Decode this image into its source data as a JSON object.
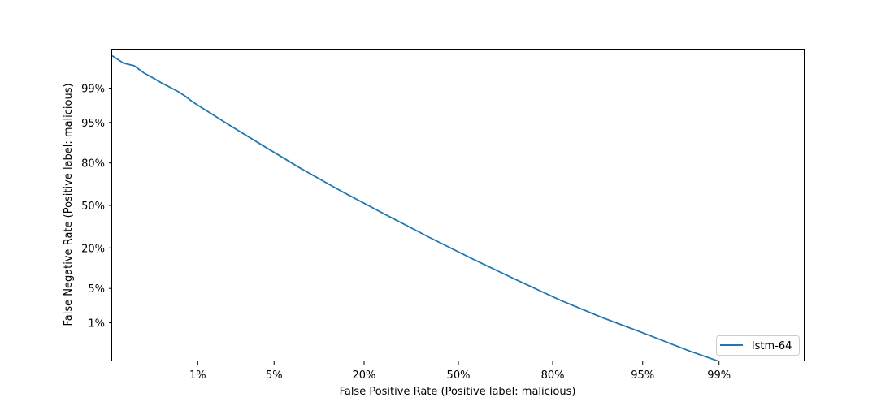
{
  "chart_data": {
    "type": "line",
    "title": "",
    "xlabel": "False Positive Rate (Positive label: malicious)",
    "ylabel": "False Negative Rate (Positive label: malicious)",
    "scale": "normal-deviate (probit) on both axes",
    "x_ticks": [
      {
        "value": 0.01,
        "label": "1%"
      },
      {
        "value": 0.05,
        "label": "5%"
      },
      {
        "value": 0.2,
        "label": "20%"
      },
      {
        "value": 0.5,
        "label": "50%"
      },
      {
        "value": 0.8,
        "label": "80%"
      },
      {
        "value": 0.95,
        "label": "95%"
      },
      {
        "value": 0.99,
        "label": "99%"
      }
    ],
    "y_ticks": [
      {
        "value": 0.01,
        "label": "1%"
      },
      {
        "value": 0.05,
        "label": "5%"
      },
      {
        "value": 0.2,
        "label": "20%"
      },
      {
        "value": 0.5,
        "label": "50%"
      },
      {
        "value": 0.8,
        "label": "80%"
      },
      {
        "value": 0.95,
        "label": "95%"
      },
      {
        "value": 0.99,
        "label": "99%"
      }
    ],
    "xlim": [
      0.001,
      0.999
    ],
    "ylim": [
      0.001,
      0.999
    ],
    "grid": false,
    "legend_position": "lower-right",
    "series": [
      {
        "name": "lstm-64",
        "color": "#1f77b4",
        "x": [
          0.001,
          0.0014,
          0.0019,
          0.0025,
          0.0032,
          0.004,
          0.005,
          0.0062,
          0.0075,
          0.009,
          0.012,
          0.02,
          0.04,
          0.08,
          0.15,
          0.25,
          0.4,
          0.55,
          0.7,
          0.82,
          0.9,
          0.95,
          0.98,
          0.992,
          0.997,
          0.999
        ],
        "y": [
          0.9985,
          0.9976,
          0.9972,
          0.9957,
          0.9943,
          0.9925,
          0.9905,
          0.988,
          0.9845,
          0.9795,
          0.9707,
          0.9458,
          0.8837,
          0.7676,
          0.6072,
          0.4391,
          0.2612,
          0.1449,
          0.0691,
          0.0298,
          0.0132,
          0.0058,
          0.002,
          0.0008,
          0.00032,
          0.00016
        ]
      }
    ]
  }
}
